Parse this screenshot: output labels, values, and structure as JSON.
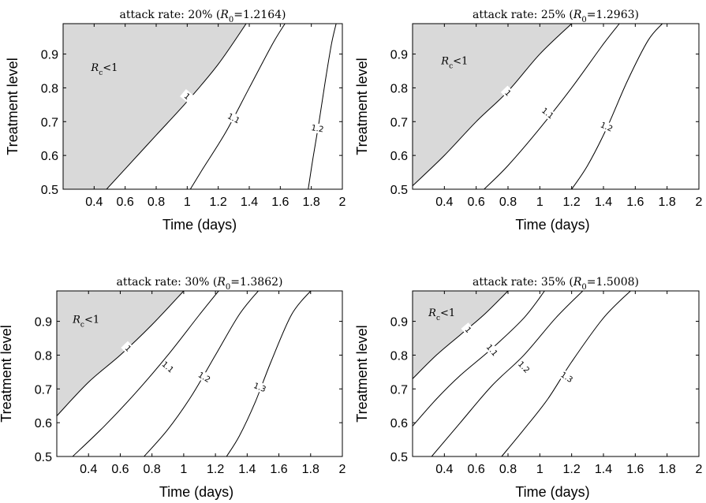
{
  "chart_data": [
    {
      "type": "line",
      "title": "attack rate: 20% (R",
      "title_sub": "0",
      "title_tail": "=1.2164)",
      "xlabel": "Time (days)",
      "ylabel": "Treatment level",
      "xlim": [
        0.2,
        2.0
      ],
      "ylim": [
        0.5,
        0.99
      ],
      "xticks": [
        "0.4",
        "0.6",
        "0.8",
        "1",
        "1.2",
        "1.4",
        "1.6",
        "1.8",
        "2"
      ],
      "yticks": [
        "0.5",
        "0.6",
        "0.7",
        "0.8",
        "0.9"
      ],
      "shaded_region": {
        "label_main": "R",
        "label_sub": "c",
        "label_tail": "<1",
        "label_at": [
          0.38,
          0.85
        ],
        "color": "#d9d9d9"
      },
      "series": [
        {
          "name": "1",
          "points": [
            [
              0.48,
              0.5
            ],
            [
              0.6,
              0.56
            ],
            [
              0.8,
              0.66
            ],
            [
              1.0,
              0.76
            ],
            [
              1.2,
              0.87
            ],
            [
              1.38,
              0.99
            ]
          ],
          "label_at": [
            1.0,
            0.775
          ]
        },
        {
          "name": "1.1",
          "points": [
            [
              1.02,
              0.5
            ],
            [
              1.1,
              0.56
            ],
            [
              1.25,
              0.67
            ],
            [
              1.4,
              0.8
            ],
            [
              1.55,
              0.93
            ],
            [
              1.63,
              0.99
            ]
          ],
          "label_at": [
            1.3,
            0.71
          ]
        },
        {
          "name": "1.2",
          "points": [
            [
              1.78,
              0.5
            ],
            [
              1.81,
              0.59
            ],
            [
              1.85,
              0.7
            ],
            [
              1.89,
              0.82
            ],
            [
              1.93,
              0.93
            ],
            [
              1.96,
              0.99
            ]
          ],
          "label_at": [
            1.84,
            0.68
          ]
        }
      ]
    },
    {
      "type": "line",
      "title": "attack rate: 25% (R",
      "title_sub": "0",
      "title_tail": "=1.2963)",
      "xlabel": "Time (days)",
      "ylabel": "Treatment level",
      "xlim": [
        0.2,
        2.0
      ],
      "ylim": [
        0.5,
        0.99
      ],
      "xticks": [
        "0.4",
        "0.6",
        "0.8",
        "1",
        "1.2",
        "1.4",
        "1.6",
        "1.8",
        "2"
      ],
      "yticks": [
        "0.5",
        "0.6",
        "0.7",
        "0.8",
        "0.9"
      ],
      "shaded_region": {
        "label_main": "R",
        "label_sub": "c",
        "label_tail": "<1",
        "label_at": [
          0.38,
          0.87
        ],
        "color": "#d9d9d9"
      },
      "series": [
        {
          "name": "1",
          "points": [
            [
              0.2,
              0.51
            ],
            [
              0.4,
              0.6
            ],
            [
              0.6,
              0.7
            ],
            [
              0.8,
              0.79
            ],
            [
              1.0,
              0.9
            ],
            [
              1.2,
              0.99
            ]
          ],
          "label_at": [
            0.8,
            0.785
          ]
        },
        {
          "name": "1.1",
          "points": [
            [
              0.65,
              0.5
            ],
            [
              0.8,
              0.57
            ],
            [
              1.0,
              0.68
            ],
            [
              1.2,
              0.8
            ],
            [
              1.4,
              0.93
            ],
            [
              1.5,
              0.99
            ]
          ],
          "label_at": [
            1.05,
            0.725
          ]
        },
        {
          "name": "1.2",
          "points": [
            [
              1.2,
              0.5
            ],
            [
              1.3,
              0.57
            ],
            [
              1.42,
              0.68
            ],
            [
              1.55,
              0.82
            ],
            [
              1.68,
              0.94
            ],
            [
              1.77,
              0.99
            ]
          ],
          "label_at": [
            1.42,
            0.685
          ]
        }
      ]
    },
    {
      "type": "line",
      "title": "attack rate: 30% (R",
      "title_sub": "0",
      "title_tail": "=1.3862)",
      "xlabel": "Time (days)",
      "ylabel": "Treatment level",
      "xlim": [
        0.2,
        2.0
      ],
      "ylim": [
        0.5,
        0.99
      ],
      "xticks": [
        "0.4",
        "0.6",
        "0.8",
        "1",
        "1.2",
        "1.4",
        "1.6",
        "1.8",
        "2"
      ],
      "yticks": [
        "0.5",
        "0.6",
        "0.7",
        "0.8",
        "0.9"
      ],
      "shaded_region": {
        "label_main": "R",
        "label_sub": "c",
        "label_tail": "<1",
        "label_at": [
          0.3,
          0.895
        ],
        "color": "#d9d9d9"
      },
      "series": [
        {
          "name": "1",
          "points": [
            [
              0.2,
              0.62
            ],
            [
              0.4,
              0.72
            ],
            [
              0.6,
              0.8
            ],
            [
              0.8,
              0.89
            ],
            [
              1.0,
              0.99
            ]
          ],
          "label_at": [
            0.65,
            0.82
          ]
        },
        {
          "name": "1.1",
          "points": [
            [
              0.3,
              0.5
            ],
            [
              0.5,
              0.59
            ],
            [
              0.7,
              0.69
            ],
            [
              0.9,
              0.8
            ],
            [
              1.1,
              0.92
            ],
            [
              1.22,
              0.99
            ]
          ],
          "label_at": [
            0.9,
            0.765
          ]
        },
        {
          "name": "1.2",
          "points": [
            [
              0.75,
              0.5
            ],
            [
              0.9,
              0.58
            ],
            [
              1.05,
              0.68
            ],
            [
              1.2,
              0.8
            ],
            [
              1.35,
              0.92
            ],
            [
              1.47,
              0.99
            ]
          ],
          "label_at": [
            1.13,
            0.735
          ]
        },
        {
          "name": "1.3",
          "points": [
            [
              1.27,
              0.5
            ],
            [
              1.35,
              0.56
            ],
            [
              1.45,
              0.66
            ],
            [
              1.55,
              0.78
            ],
            [
              1.68,
              0.92
            ],
            [
              1.8,
              0.99
            ]
          ],
          "label_at": [
            1.48,
            0.705
          ]
        }
      ]
    },
    {
      "type": "line",
      "title": "attack rate: 35% (R",
      "title_sub": "0",
      "title_tail": "=1.5008)",
      "xlabel": "Time (days)",
      "ylabel": "Treatment level",
      "xlim": [
        0.2,
        2.0
      ],
      "ylim": [
        0.5,
        0.99
      ],
      "xticks": [
        "0.4",
        "0.6",
        "0.8",
        "1",
        "1.2",
        "1.4",
        "1.6",
        "1.8",
        "2"
      ],
      "yticks": [
        "0.5",
        "0.6",
        "0.7",
        "0.8",
        "0.9"
      ],
      "shaded_region": {
        "label_main": "R",
        "label_sub": "c",
        "label_tail": "<1",
        "label_at": [
          0.3,
          0.915
        ],
        "color": "#d9d9d9"
      },
      "series": [
        {
          "name": "1",
          "points": [
            [
              0.2,
              0.73
            ],
            [
              0.35,
              0.8
            ],
            [
              0.5,
              0.86
            ],
            [
              0.65,
              0.92
            ],
            [
              0.8,
              0.99
            ]
          ],
          "label_at": [
            0.55,
            0.875
          ]
        },
        {
          "name": "1.1",
          "points": [
            [
              0.2,
              0.59
            ],
            [
              0.35,
              0.67
            ],
            [
              0.5,
              0.74
            ],
            [
              0.7,
              0.82
            ],
            [
              0.9,
              0.91
            ],
            [
              1.03,
              0.99
            ]
          ],
          "label_at": [
            0.7,
            0.815
          ]
        },
        {
          "name": "1.2",
          "points": [
            [
              0.32,
              0.5
            ],
            [
              0.5,
              0.6
            ],
            [
              0.7,
              0.71
            ],
            [
              0.9,
              0.8
            ],
            [
              1.1,
              0.91
            ],
            [
              1.27,
              0.99
            ]
          ],
          "label_at": [
            0.9,
            0.765
          ]
        },
        {
          "name": "1.3",
          "points": [
            [
              0.76,
              0.5
            ],
            [
              0.9,
              0.58
            ],
            [
              1.05,
              0.67
            ],
            [
              1.2,
              0.78
            ],
            [
              1.4,
              0.91
            ],
            [
              1.57,
              0.99
            ]
          ],
          "label_at": [
            1.17,
            0.735
          ]
        }
      ]
    }
  ]
}
